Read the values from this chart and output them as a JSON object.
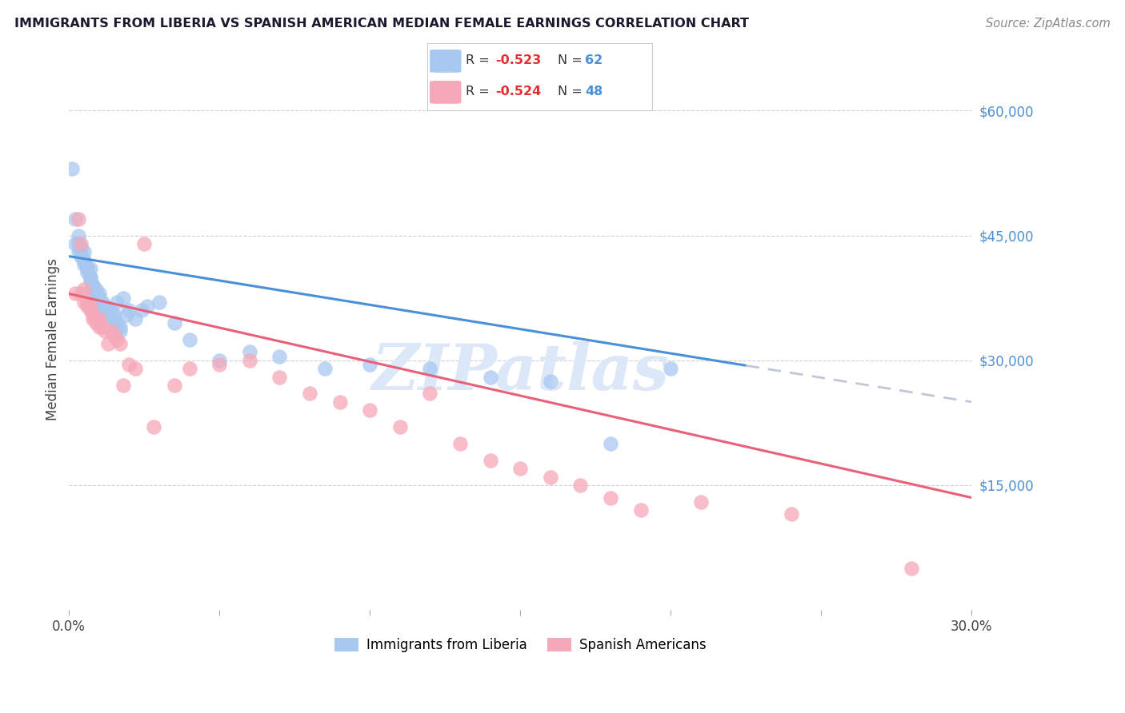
{
  "title": "IMMIGRANTS FROM LIBERIA VS SPANISH AMERICAN MEDIAN FEMALE EARNINGS CORRELATION CHART",
  "source": "Source: ZipAtlas.com",
  "ylabel": "Median Female Earnings",
  "yticks": [
    0,
    15000,
    30000,
    45000,
    60000
  ],
  "ytick_labels": [
    "",
    "$15,000",
    "$30,000",
    "$45,000",
    "$60,000"
  ],
  "xlim": [
    0.0,
    0.3
  ],
  "ylim": [
    0,
    65000
  ],
  "legend_blue_r": "-0.523",
  "legend_blue_n": "62",
  "legend_pink_r": "-0.524",
  "legend_pink_n": "48",
  "blue_color": "#a8c8f0",
  "pink_color": "#f5a8b8",
  "line_blue": "#4a90d9",
  "line_pink": "#e8607a",
  "line_dashed": "#c0c8d8",
  "watermark": "ZIPatlas",
  "watermark_color": "#dce8f8",
  "title_color": "#1a1a2e",
  "source_color": "#888888",
  "blue_scatter_x": [
    0.001,
    0.002,
    0.002,
    0.003,
    0.003,
    0.003,
    0.004,
    0.004,
    0.004,
    0.005,
    0.005,
    0.005,
    0.005,
    0.006,
    0.006,
    0.006,
    0.007,
    0.007,
    0.007,
    0.007,
    0.008,
    0.008,
    0.008,
    0.009,
    0.009,
    0.009,
    0.01,
    0.01,
    0.01,
    0.011,
    0.011,
    0.012,
    0.012,
    0.013,
    0.013,
    0.014,
    0.014,
    0.015,
    0.015,
    0.016,
    0.016,
    0.017,
    0.017,
    0.018,
    0.019,
    0.02,
    0.022,
    0.024,
    0.026,
    0.03,
    0.035,
    0.04,
    0.05,
    0.06,
    0.07,
    0.085,
    0.1,
    0.12,
    0.14,
    0.16,
    0.18,
    0.2
  ],
  "blue_scatter_y": [
    53000,
    47000,
    44000,
    45000,
    44000,
    43000,
    43500,
    43000,
    42500,
    43000,
    42000,
    42000,
    41500,
    41000,
    41000,
    40500,
    41000,
    40000,
    40000,
    39500,
    39000,
    39000,
    38500,
    38500,
    38000,
    37500,
    38000,
    37500,
    37000,
    37000,
    36500,
    36500,
    36000,
    36000,
    35500,
    36000,
    35000,
    35500,
    35000,
    37000,
    34500,
    34000,
    33500,
    37500,
    35500,
    36000,
    35000,
    36000,
    36500,
    37000,
    34500,
    32500,
    30000,
    31000,
    30500,
    29000,
    29500,
    29000,
    28000,
    27500,
    20000,
    29000
  ],
  "pink_scatter_x": [
    0.002,
    0.003,
    0.004,
    0.004,
    0.005,
    0.005,
    0.006,
    0.006,
    0.007,
    0.007,
    0.008,
    0.008,
    0.009,
    0.009,
    0.01,
    0.01,
    0.011,
    0.012,
    0.013,
    0.014,
    0.015,
    0.016,
    0.017,
    0.018,
    0.02,
    0.022,
    0.025,
    0.028,
    0.035,
    0.04,
    0.05,
    0.06,
    0.07,
    0.08,
    0.09,
    0.1,
    0.11,
    0.12,
    0.13,
    0.14,
    0.15,
    0.16,
    0.17,
    0.18,
    0.19,
    0.21,
    0.24,
    0.28
  ],
  "pink_scatter_y": [
    38000,
    47000,
    44000,
    38000,
    38500,
    37000,
    37000,
    36500,
    36500,
    36000,
    35500,
    35000,
    35000,
    34500,
    35000,
    34000,
    34000,
    33500,
    32000,
    33500,
    33000,
    32500,
    32000,
    27000,
    29500,
    29000,
    44000,
    22000,
    27000,
    29000,
    29500,
    30000,
    28000,
    26000,
    25000,
    24000,
    22000,
    26000,
    20000,
    18000,
    17000,
    16000,
    15000,
    13500,
    12000,
    13000,
    11500,
    5000
  ]
}
